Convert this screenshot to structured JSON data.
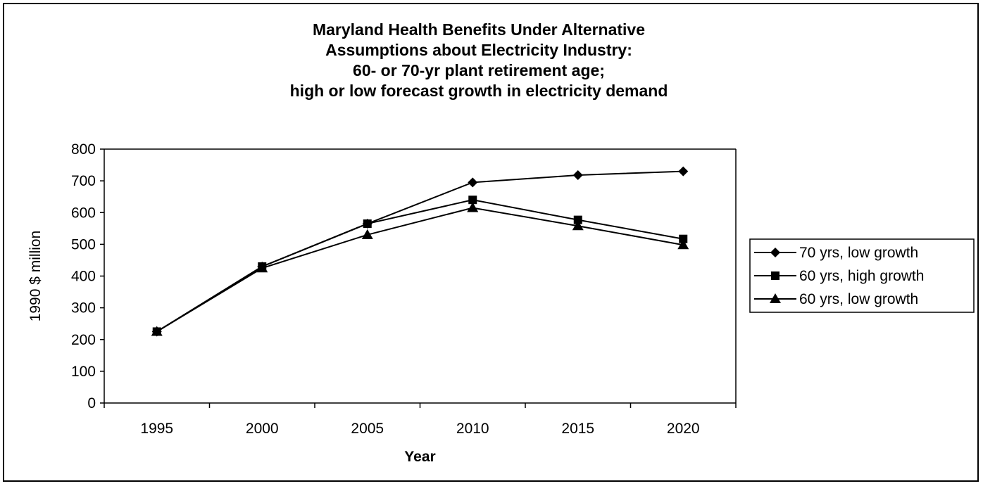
{
  "chart_data": {
    "type": "line",
    "title_lines": [
      "Maryland Health Benefits Under Alternative",
      "Assumptions about Electricity Industry:",
      "60- or 70-yr plant retirement age;",
      "high or low forecast growth in electricity demand"
    ],
    "xlabel": "Year",
    "ylabel": "1990 $ million",
    "categories": [
      "1995",
      "2000",
      "2005",
      "2010",
      "2015",
      "2020"
    ],
    "ylim": [
      0,
      800
    ],
    "yticks": [
      0,
      100,
      200,
      300,
      400,
      500,
      600,
      700,
      800
    ],
    "grid": false,
    "legend_position": "right",
    "series": [
      {
        "name": "70 yrs, low growth",
        "marker": "diamond",
        "color": "#000000",
        "values": [
          225,
          430,
          565,
          695,
          718,
          730
        ]
      },
      {
        "name": "60 yrs, high growth",
        "marker": "square",
        "color": "#000000",
        "values": [
          225,
          430,
          565,
          640,
          577,
          517
        ]
      },
      {
        "name": "60 yrs, low growth",
        "marker": "triangle",
        "color": "#000000",
        "values": [
          225,
          425,
          530,
          615,
          558,
          498
        ]
      }
    ]
  }
}
